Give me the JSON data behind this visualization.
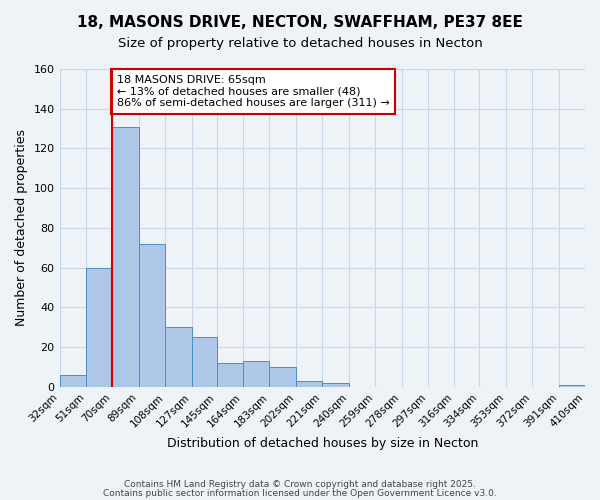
{
  "title1": "18, MASONS DRIVE, NECTON, SWAFFHAM, PE37 8EE",
  "title2": "Size of property relative to detached houses in Necton",
  "xlabel": "Distribution of detached houses by size in Necton",
  "ylabel": "Number of detached properties",
  "bar_color": "#aec6e8",
  "bar_edge_color": "#4a90c4",
  "grid_color": "#c8d8e8",
  "bg_color": "#eef3f8",
  "bins": [
    32,
    51,
    70,
    89,
    108,
    127,
    145,
    164,
    183,
    202,
    221,
    240,
    259,
    278,
    297,
    316,
    334,
    353,
    372,
    391,
    410
  ],
  "bin_labels": [
    "32sqm",
    "51sqm",
    "70sqm",
    "89sqm",
    "108sqm",
    "127sqm",
    "145sqm",
    "164sqm",
    "183sqm",
    "202sqm",
    "221sqm",
    "240sqm",
    "259sqm",
    "278sqm",
    "297sqm",
    "316sqm",
    "334sqm",
    "353sqm",
    "372sqm",
    "391sqm",
    "410sqm"
  ],
  "heights": [
    6,
    60,
    131,
    72,
    30,
    25,
    12,
    13,
    10,
    3,
    2,
    0,
    0,
    0,
    0,
    0,
    0,
    0,
    0,
    1
  ],
  "ylim": [
    0,
    160
  ],
  "yticks": [
    0,
    20,
    40,
    60,
    80,
    100,
    120,
    140,
    160
  ],
  "vline_x": 70,
  "vline_color": "#cc0000",
  "annotation_title": "18 MASONS DRIVE: 65sqm",
  "annotation_line1": "← 13% of detached houses are smaller (48)",
  "annotation_line2": "86% of semi-detached houses are larger (311) →",
  "annotation_box_color": "#ffffff",
  "annotation_box_edge": "#cc0000",
  "footer1": "Contains HM Land Registry data © Crown copyright and database right 2025.",
  "footer2": "Contains public sector information licensed under the Open Government Licence v3.0."
}
